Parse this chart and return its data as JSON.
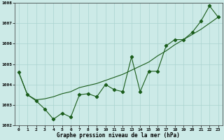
{
  "x": [
    0,
    1,
    2,
    3,
    4,
    5,
    6,
    7,
    8,
    9,
    10,
    11,
    12,
    13,
    14,
    15,
    16,
    17,
    18,
    19,
    20,
    21,
    22,
    23
  ],
  "y_main": [
    1004.6,
    1003.5,
    1003.2,
    1002.8,
    1002.3,
    1002.6,
    1002.4,
    1003.5,
    1003.55,
    1003.4,
    1004.0,
    1003.75,
    1003.65,
    1005.35,
    1003.65,
    1004.65,
    1004.65,
    1005.9,
    1006.2,
    1006.2,
    1006.55,
    1007.1,
    1007.85,
    1007.3
  ],
  "y_trend": [
    1004.6,
    1003.5,
    1003.25,
    1003.3,
    1003.4,
    1003.55,
    1003.65,
    1003.85,
    1003.95,
    1004.05,
    1004.2,
    1004.35,
    1004.5,
    1004.7,
    1004.9,
    1005.1,
    1005.4,
    1005.65,
    1005.95,
    1006.2,
    1006.45,
    1006.7,
    1007.0,
    1007.3
  ],
  "ylim": [
    1002.0,
    1008.0
  ],
  "xlim": [
    -0.5,
    23.5
  ],
  "yticks": [
    1002,
    1003,
    1004,
    1005,
    1006,
    1007,
    1008
  ],
  "xticks": [
    0,
    1,
    2,
    3,
    4,
    5,
    6,
    7,
    8,
    9,
    10,
    11,
    12,
    13,
    14,
    15,
    16,
    17,
    18,
    19,
    20,
    21,
    22,
    23
  ],
  "xlabel": "Graphe pression niveau de la mer (hPa)",
  "line_color": "#1a5c1a",
  "bg_color": "#cceae7",
  "grid_color": "#aad4d0",
  "marker": "D",
  "marker_size": 2.2,
  "linewidth": 0.8
}
